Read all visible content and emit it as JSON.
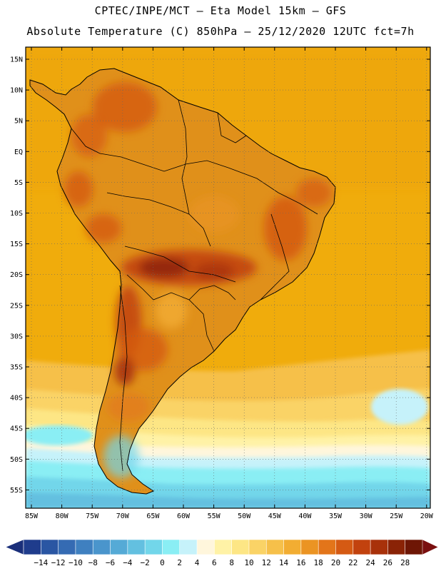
{
  "header": {
    "line1": "CPTEC/INPE/MCT –  Eta Model 15km – GFS",
    "line2": "Absolute Temperature (C) 850hPa – 25/12/2020 12UTC fct=7h"
  },
  "axes": {
    "lat_labels": [
      "15N",
      "10N",
      "5N",
      "EQ",
      "5S",
      "10S",
      "15S",
      "20S",
      "25S",
      "30S",
      "35S",
      "40S",
      "45S",
      "50S",
      "55S"
    ],
    "lon_labels": [
      "85W",
      "80W",
      "75W",
      "70W",
      "65W",
      "60W",
      "55W",
      "50W",
      "45W",
      "40W",
      "35W",
      "30W",
      "25W",
      "20W"
    ]
  },
  "colorbar": {
    "labels": [
      "-14",
      "-12",
      "-10",
      "-8",
      "-6",
      "-4",
      "-2",
      "0",
      "2",
      "4",
      "6",
      "8",
      "10",
      "12",
      "14",
      "16",
      "18",
      "20",
      "22",
      "24",
      "26",
      "28"
    ],
    "colors": [
      "#1f3c8c",
      "#2a56a3",
      "#356bb3",
      "#3f80c0",
      "#4a95cc",
      "#55aad6",
      "#63c0e0",
      "#72d6ea",
      "#8aeef4",
      "#c6f2fa",
      "#fff6dc",
      "#fff2a6",
      "#fde685",
      "#fad366",
      "#f6c04a",
      "#f2ad32",
      "#eb9423",
      "#e3751a",
      "#d55a13",
      "#c2420e",
      "#a8310a",
      "#8a2306",
      "#6e1605"
    ],
    "low_color": "#1a2f7a",
    "high_color": "#7a0f0f"
  },
  "palette": {
    "ocean": "#f0ac0c",
    "land_base": "#e0901a",
    "coast": "#000000"
  }
}
